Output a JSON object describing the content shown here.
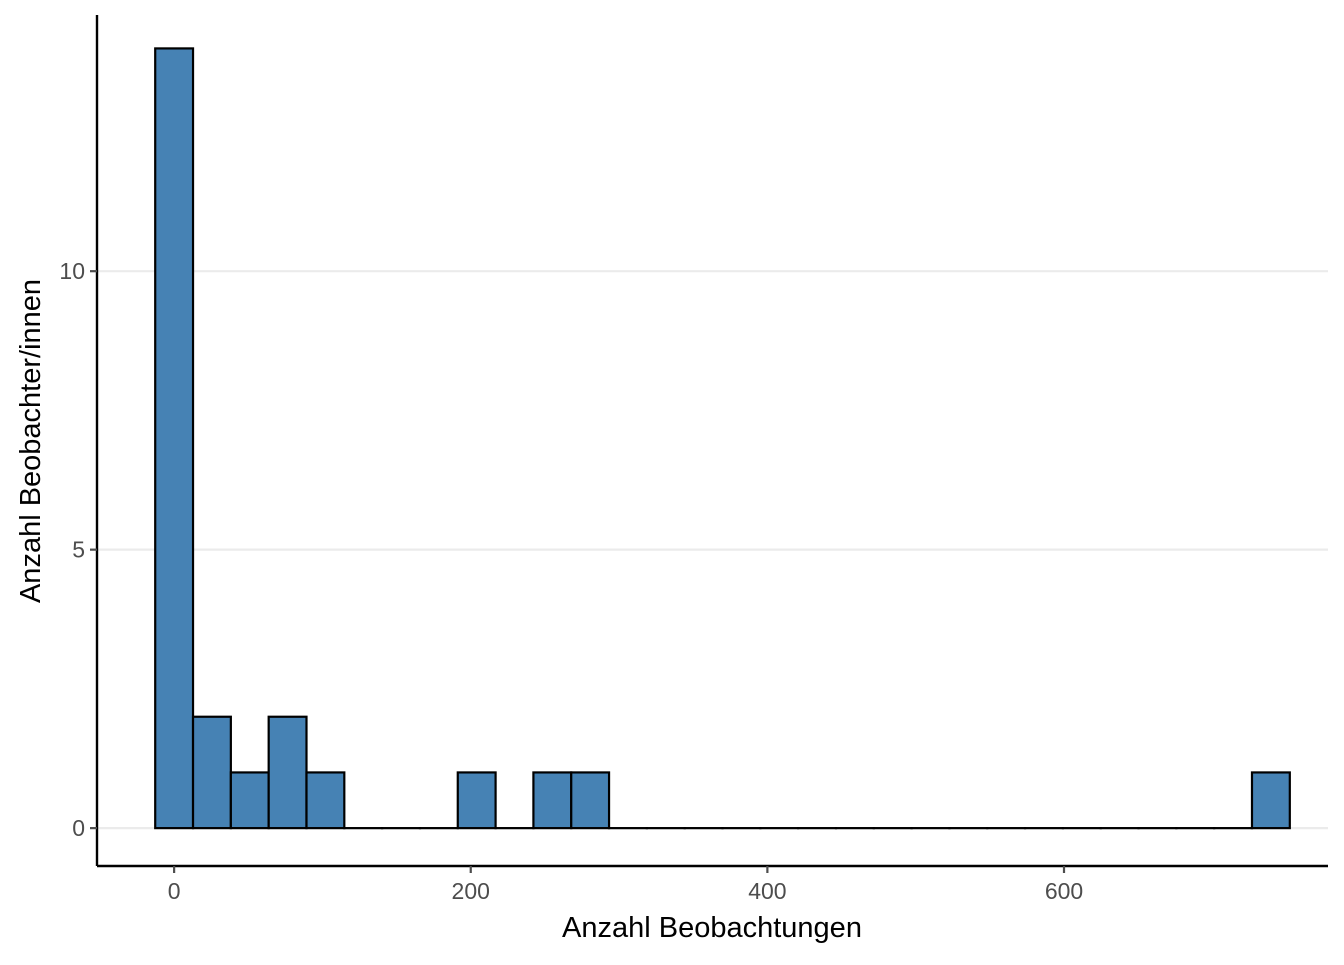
{
  "chart_data": {
    "type": "bar",
    "title": "",
    "xlabel": "Anzahl Beobachtungen",
    "ylabel": "Anzahl Beobachter/innen",
    "xlim": [
      -52,
      778
    ],
    "ylim": [
      -0.68,
      14.6
    ],
    "x_ticks": [
      0,
      200,
      400,
      600
    ],
    "x_tick_labels": [
      "0",
      "200",
      "400",
      "600"
    ],
    "y_ticks": [
      0,
      5,
      10
    ],
    "y_tick_labels": [
      "0",
      "5",
      "10"
    ],
    "grid": "horizontal major",
    "bin_width": 25.5,
    "bins": [
      {
        "x_start": -12.75,
        "x_end": 12.75,
        "count": 14
      },
      {
        "x_start": 12.75,
        "x_end": 38.25,
        "count": 2
      },
      {
        "x_start": 38.25,
        "x_end": 63.75,
        "count": 1
      },
      {
        "x_start": 63.75,
        "x_end": 89.25,
        "count": 2
      },
      {
        "x_start": 89.25,
        "x_end": 114.75,
        "count": 1
      },
      {
        "x_start": 114.75,
        "x_end": 140.25,
        "count": 0
      },
      {
        "x_start": 140.25,
        "x_end": 165.75,
        "count": 0
      },
      {
        "x_start": 165.75,
        "x_end": 191.25,
        "count": 0
      },
      {
        "x_start": 191.25,
        "x_end": 216.75,
        "count": 1
      },
      {
        "x_start": 216.75,
        "x_end": 242.25,
        "count": 0
      },
      {
        "x_start": 242.25,
        "x_end": 267.75,
        "count": 1
      },
      {
        "x_start": 267.75,
        "x_end": 293.25,
        "count": 1
      },
      {
        "x_start": 293.25,
        "x_end": 318.75,
        "count": 0
      },
      {
        "x_start": 318.75,
        "x_end": 344.25,
        "count": 0
      },
      {
        "x_start": 344.25,
        "x_end": 369.75,
        "count": 0
      },
      {
        "x_start": 369.75,
        "x_end": 395.25,
        "count": 0
      },
      {
        "x_start": 395.25,
        "x_end": 420.75,
        "count": 0
      },
      {
        "x_start": 420.75,
        "x_end": 446.25,
        "count": 0
      },
      {
        "x_start": 446.25,
        "x_end": 471.75,
        "count": 0
      },
      {
        "x_start": 471.75,
        "x_end": 497.25,
        "count": 0
      },
      {
        "x_start": 497.25,
        "x_end": 522.75,
        "count": 0
      },
      {
        "x_start": 522.75,
        "x_end": 548.25,
        "count": 0
      },
      {
        "x_start": 548.25,
        "x_end": 573.75,
        "count": 0
      },
      {
        "x_start": 573.75,
        "x_end": 599.25,
        "count": 0
      },
      {
        "x_start": 599.25,
        "x_end": 624.75,
        "count": 0
      },
      {
        "x_start": 624.75,
        "x_end": 650.25,
        "count": 0
      },
      {
        "x_start": 650.25,
        "x_end": 675.75,
        "count": 0
      },
      {
        "x_start": 675.75,
        "x_end": 701.25,
        "count": 0
      },
      {
        "x_start": 701.25,
        "x_end": 726.75,
        "count": 0
      },
      {
        "x_start": 726.75,
        "x_end": 752.25,
        "count": 1
      }
    ],
    "colors": {
      "bar_fill": "#4682B4",
      "bar_stroke": "#000000",
      "grid": "#EBEBEB",
      "axis": "#000000",
      "tick_label": "#4D4D4D",
      "axis_title": "#000000"
    }
  }
}
